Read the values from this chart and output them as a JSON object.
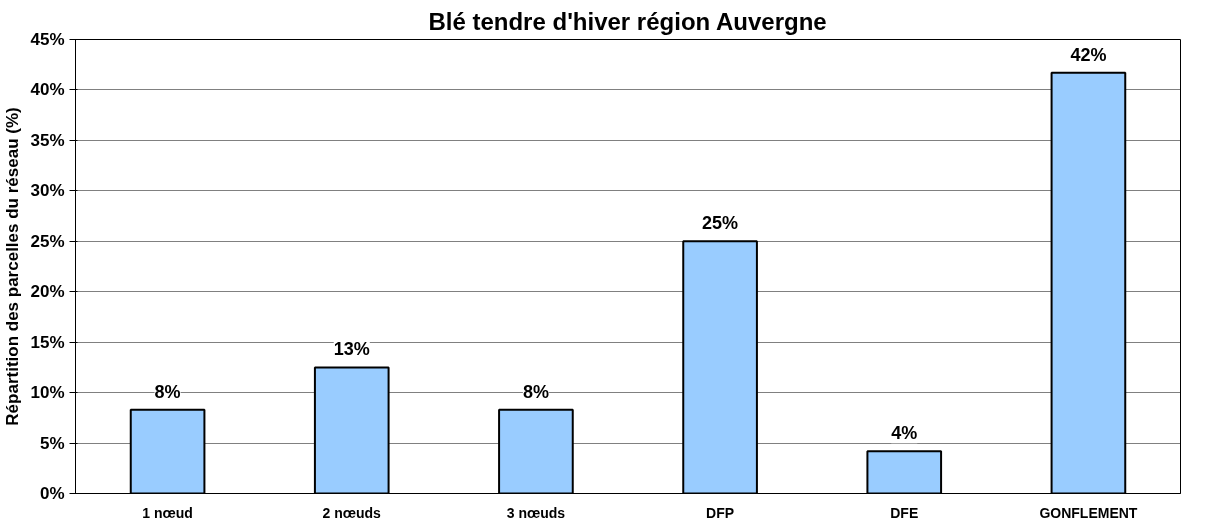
{
  "chart_data": {
    "type": "bar",
    "title": "Blé tendre d'hiver région Auvergne",
    "ylabel": "Répartition des parcelles du réseau (%)",
    "categories": [
      "1 nœud",
      "2 nœuds",
      "3 nœuds",
      "DFP",
      "DFE",
      "GONFLEMENT"
    ],
    "values": [
      8.3,
      12.5,
      8.3,
      25,
      4.2,
      41.7
    ],
    "value_labels": [
      "8%",
      "13%",
      "8%",
      "25%",
      "4%",
      "42%"
    ],
    "color": "#99ccff",
    "ylim": [
      0,
      45
    ],
    "yticks": [
      {
        "value": 0,
        "label": "0%"
      },
      {
        "value": 5,
        "label": "5%"
      },
      {
        "value": 10,
        "label": "10%"
      },
      {
        "value": 15,
        "label": "15%"
      },
      {
        "value": 20,
        "label": "20%"
      },
      {
        "value": 25,
        "label": "25%"
      },
      {
        "value": 30,
        "label": "30%"
      },
      {
        "value": 35,
        "label": "35%"
      },
      {
        "value": 40,
        "label": "40%"
      },
      {
        "value": 45,
        "label": "45%"
      }
    ],
    "grid": "y"
  }
}
